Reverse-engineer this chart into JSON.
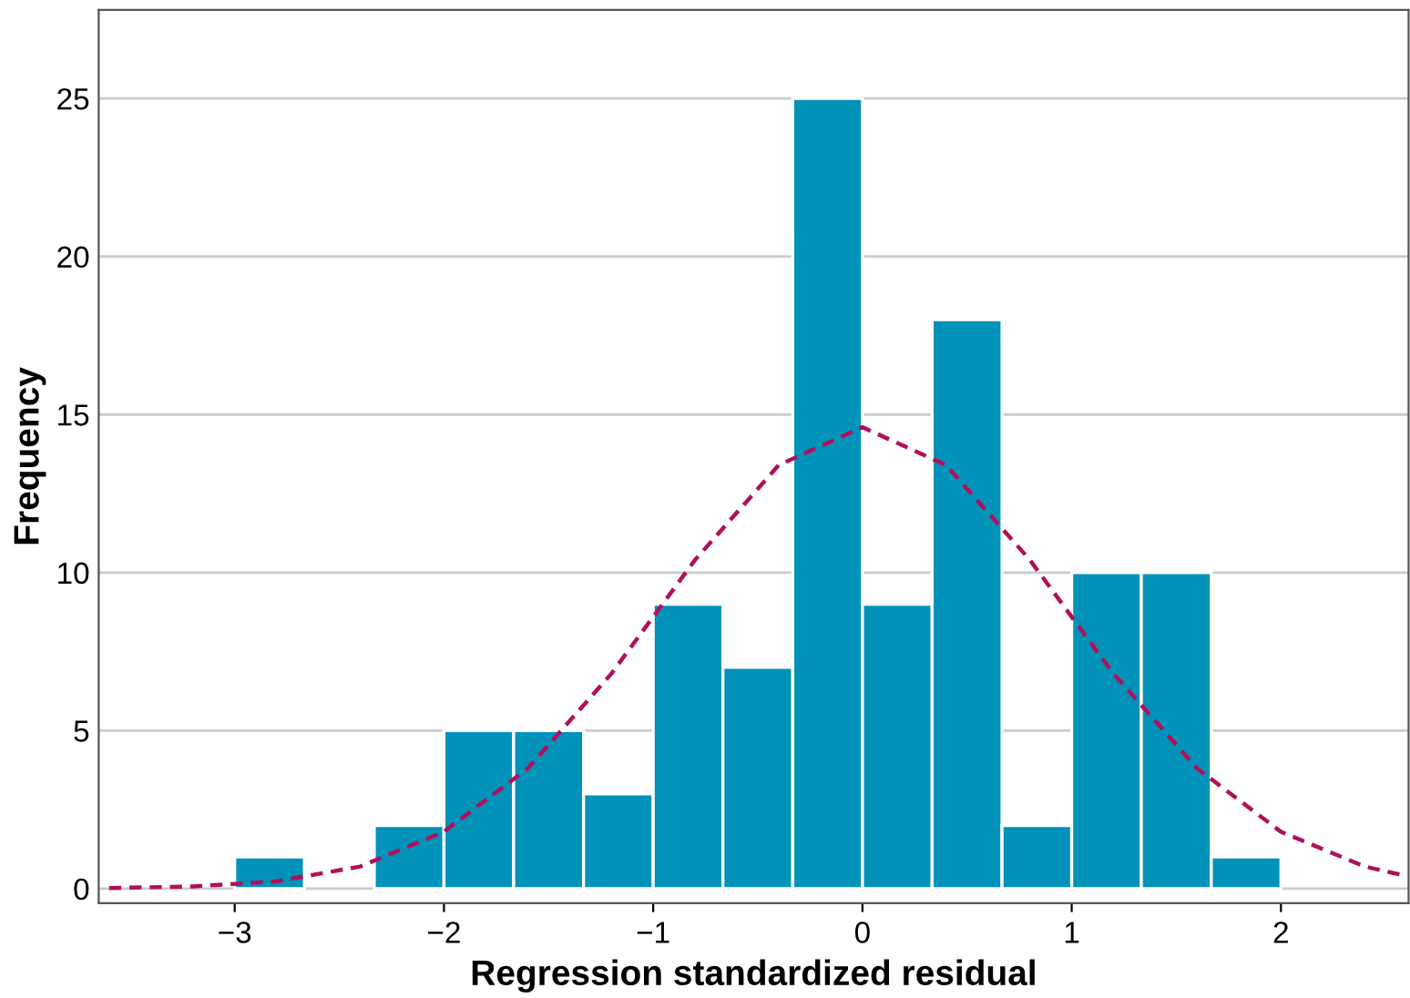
{
  "chart_data": {
    "type": "histogram",
    "xlabel": "Regression standardized residual",
    "ylabel": "Frequency",
    "bins": [
      -3,
      -2.667,
      -2.333,
      -2,
      -1.667,
      -1.333,
      -1,
      -0.667,
      -0.333,
      0,
      0.333,
      0.667,
      1,
      1.333,
      1.667,
      2
    ],
    "values": [
      1,
      0,
      2,
      5,
      5,
      3,
      9,
      7,
      25,
      9,
      18,
      2,
      10,
      10,
      1
    ],
    "color": "#0092b8",
    "series": [
      {
        "type": "line",
        "color": "#b0105a",
        "line_style": "dashed",
        "x": [
          -3.6,
          -3.2,
          -2.8,
          -2.4,
          -2.0,
          -1.6,
          -1.2,
          -0.8,
          -0.4,
          0,
          0.4,
          0.8,
          1.2,
          1.6,
          2.0,
          2.4,
          2.6
        ],
        "values": [
          0.02,
          0.07,
          0.23,
          0.7,
          1.8,
          3.8,
          6.8,
          10.4,
          13.4,
          14.6,
          13.4,
          10.4,
          6.8,
          3.8,
          1.8,
          0.7,
          0.4
        ]
      }
    ],
    "xlim": [
      -3.65,
      2.61
    ],
    "ylim": [
      -0.46,
      27.8
    ],
    "xticks": [
      {
        "value": -3,
        "label": "−3"
      },
      {
        "value": -2,
        "label": "−2"
      },
      {
        "value": -1,
        "label": "−1"
      },
      0,
      1,
      2
    ],
    "yticks": [
      0,
      5,
      10,
      15,
      20,
      25
    ],
    "grid": "y"
  }
}
